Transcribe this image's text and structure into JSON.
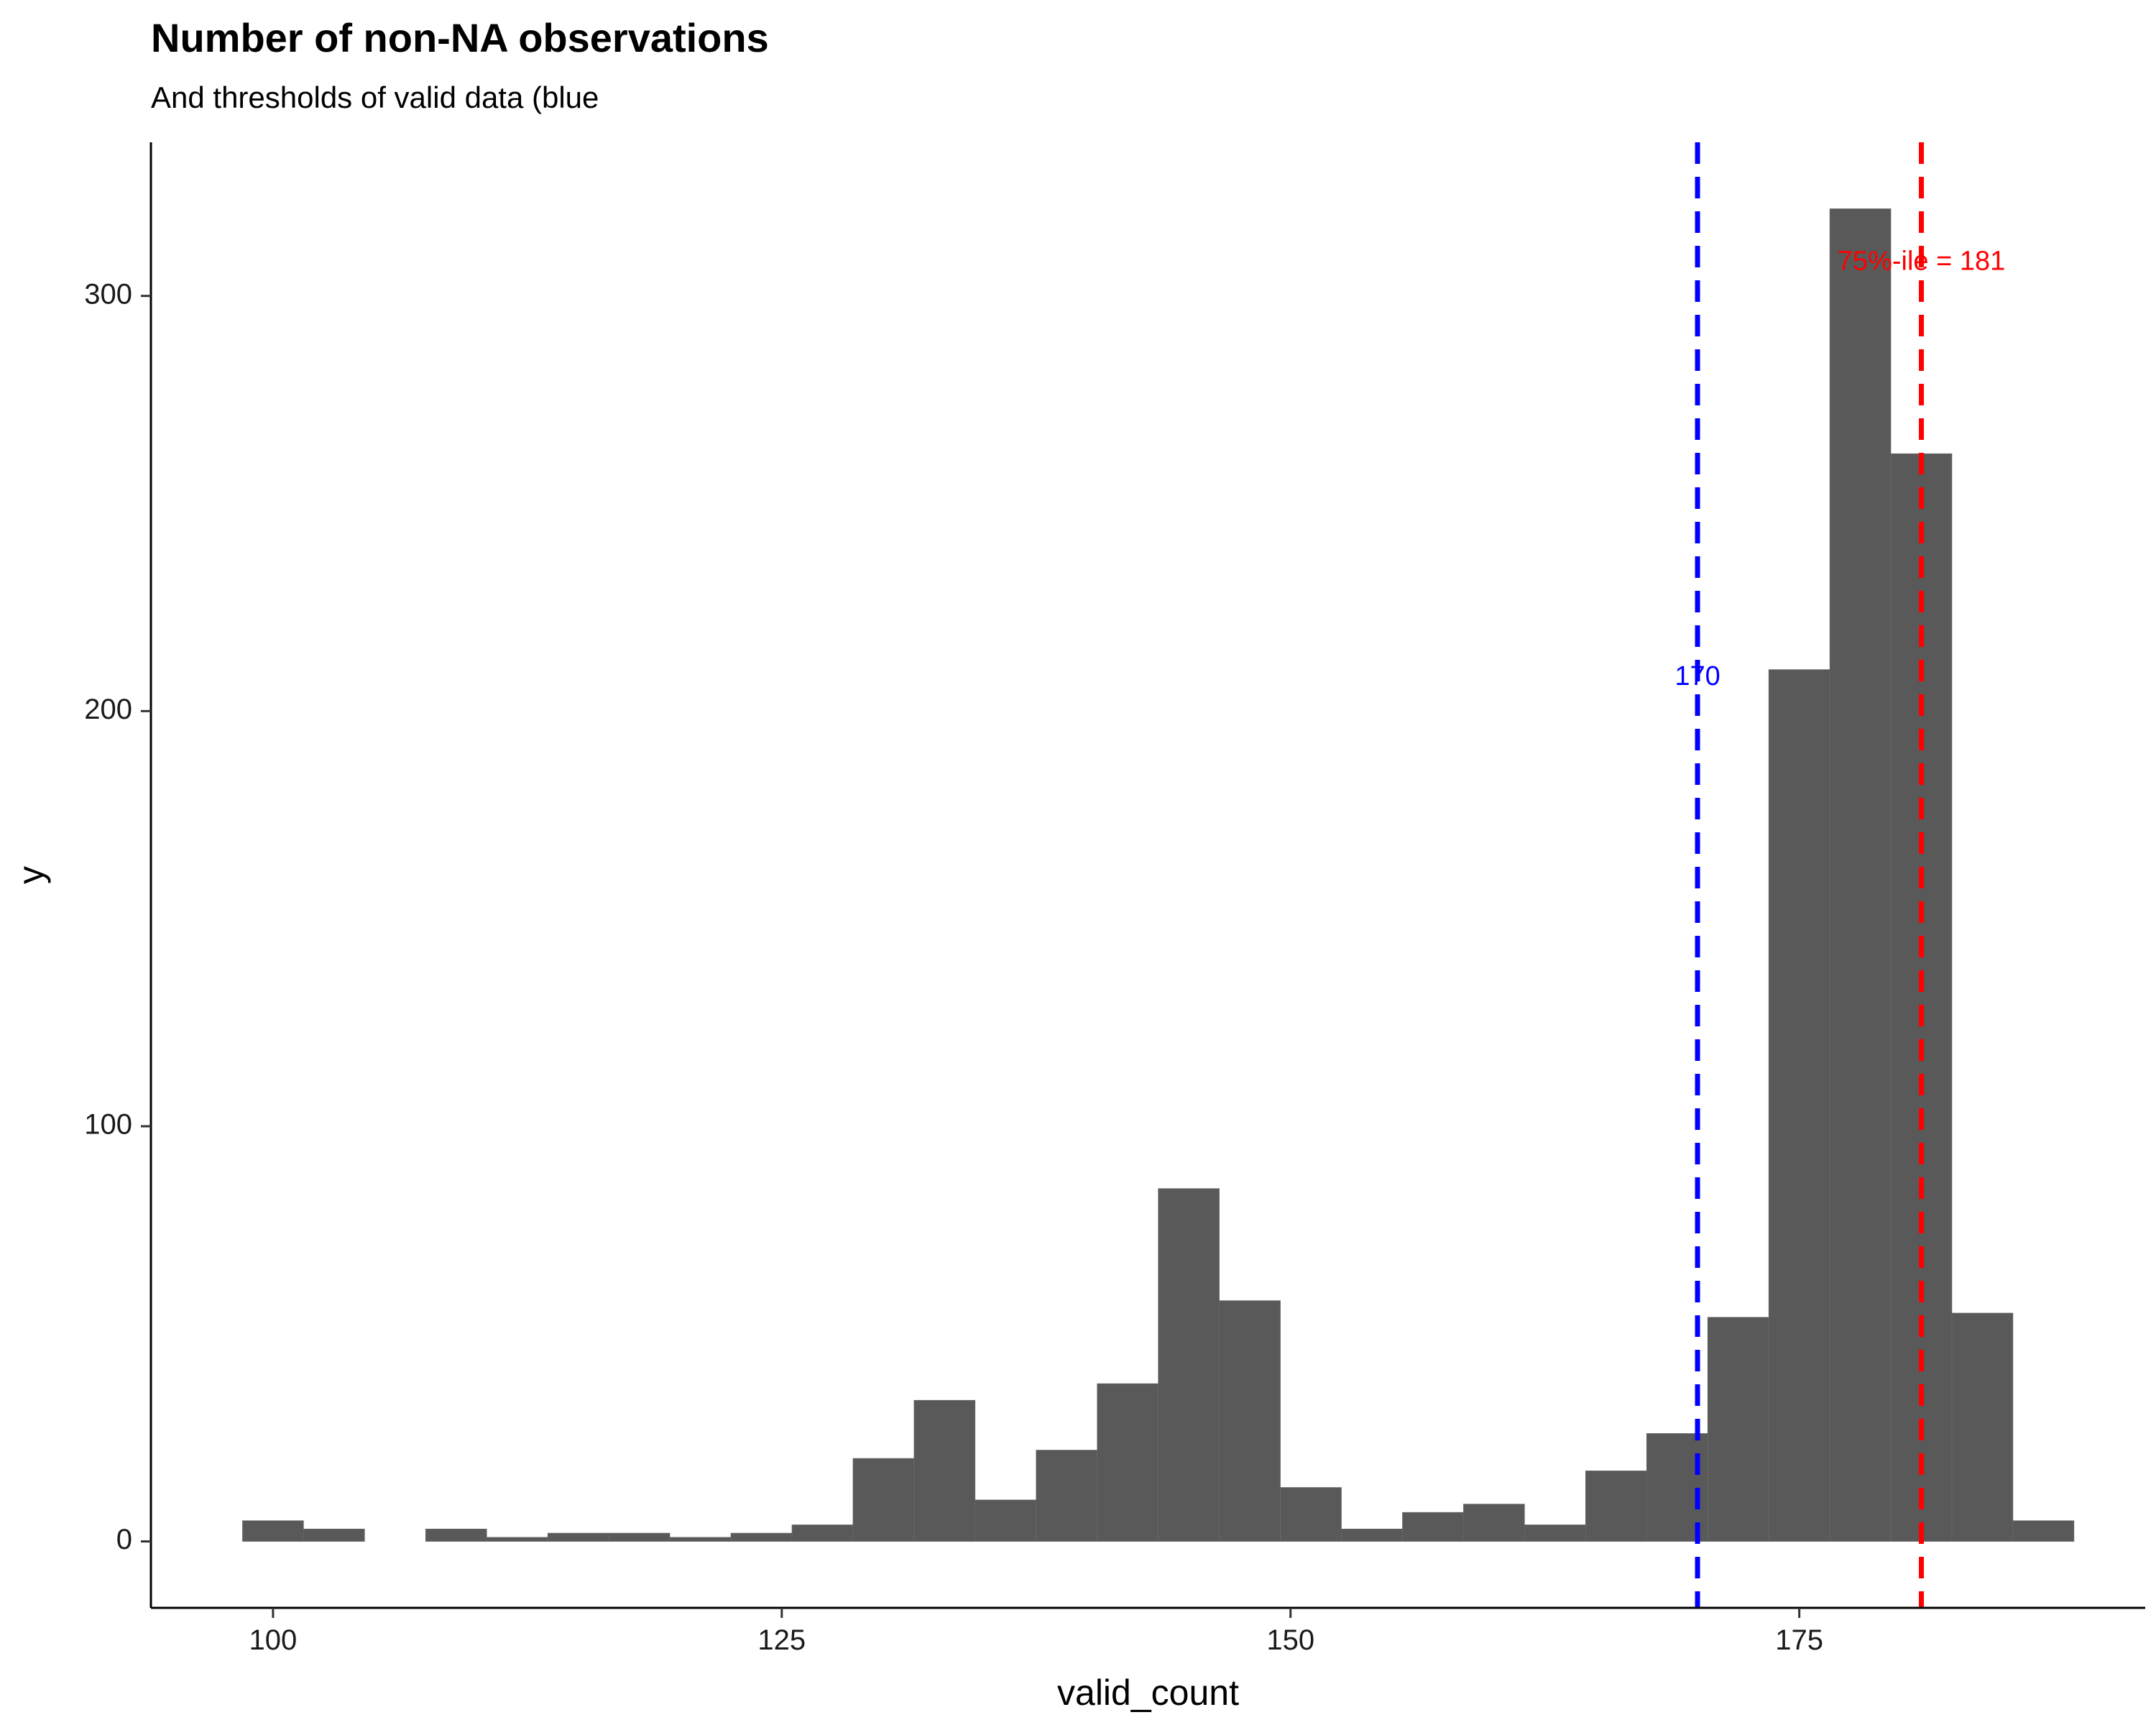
{
  "chart_data": {
    "type": "bar",
    "title": "Number of non-NA observations",
    "subtitle": "And thresholds of valid data (blue",
    "xlabel": "valid_count",
    "ylabel": "y",
    "xlim": [
      94,
      192
    ],
    "ylim": [
      -16,
      337
    ],
    "x_ticks": [
      100,
      125,
      150,
      175
    ],
    "y_ticks": [
      0,
      100,
      200,
      300
    ],
    "grid": false,
    "bar_color": "#595959",
    "bins": [
      {
        "x0": 98.5,
        "x1": 101.5,
        "count": 5
      },
      {
        "x0": 101.5,
        "x1": 104.5,
        "count": 3
      },
      {
        "x0": 104.5,
        "x1": 107.5,
        "count": 0
      },
      {
        "x0": 107.5,
        "x1": 110.5,
        "count": 3
      },
      {
        "x0": 110.5,
        "x1": 113.5,
        "count": 1
      },
      {
        "x0": 113.5,
        "x1": 116.5,
        "count": 2
      },
      {
        "x0": 116.5,
        "x1": 119.5,
        "count": 2
      },
      {
        "x0": 119.5,
        "x1": 122.5,
        "count": 1
      },
      {
        "x0": 122.5,
        "x1": 125.5,
        "count": 2
      },
      {
        "x0": 125.5,
        "x1": 128.5,
        "count": 4
      },
      {
        "x0": 128.5,
        "x1": 131.5,
        "count": 20
      },
      {
        "x0": 131.5,
        "x1": 134.5,
        "count": 34
      },
      {
        "x0": 134.5,
        "x1": 137.5,
        "count": 10
      },
      {
        "x0": 137.5,
        "x1": 140.5,
        "count": 22
      },
      {
        "x0": 140.5,
        "x1": 143.5,
        "count": 38
      },
      {
        "x0": 143.5,
        "x1": 146.5,
        "count": 85
      },
      {
        "x0": 146.5,
        "x1": 149.5,
        "count": 58
      },
      {
        "x0": 149.5,
        "x1": 152.5,
        "count": 13
      },
      {
        "x0": 152.5,
        "x1": 155.5,
        "count": 3
      },
      {
        "x0": 155.5,
        "x1": 158.5,
        "count": 7
      },
      {
        "x0": 158.5,
        "x1": 161.5,
        "count": 9
      },
      {
        "x0": 161.5,
        "x1": 164.5,
        "count": 4
      },
      {
        "x0": 164.5,
        "x1": 167.5,
        "count": 17
      },
      {
        "x0": 167.5,
        "x1": 170.5,
        "count": 26
      },
      {
        "x0": 170.5,
        "x1": 173.5,
        "count": 54
      },
      {
        "x0": 173.5,
        "x1": 176.5,
        "count": 210
      },
      {
        "x0": 176.5,
        "x1": 179.5,
        "count": 321
      },
      {
        "x0": 179.5,
        "x1": 182.5,
        "count": 262
      },
      {
        "x0": 182.5,
        "x1": 185.5,
        "count": 55
      },
      {
        "x0": 185.5,
        "x1": 188.5,
        "count": 5
      }
    ],
    "thresholds": [
      {
        "name": "blue",
        "value": 170,
        "color": "#0000ff",
        "label": "170",
        "label_y": 208
      },
      {
        "name": "red",
        "value": 181,
        "color": "#ff0000",
        "label": "75%-ile =  181",
        "label_y": 308
      }
    ]
  }
}
